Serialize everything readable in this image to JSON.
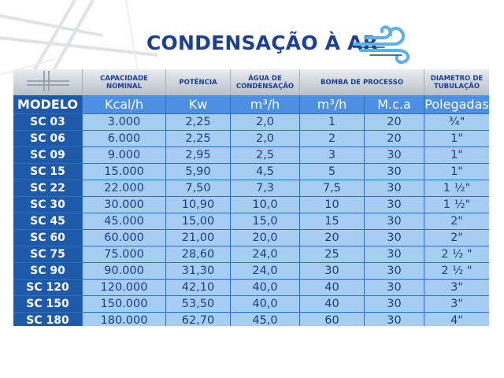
{
  "title": "CONDENSAÇÃO À AR",
  "icons": {
    "wind": "wind-icon",
    "background": "grid-lines",
    "corner": "grid-logo-icon"
  },
  "colors": {
    "title": "#1b3f92",
    "model_cell": "#1f5aa8",
    "unit_header": "#4d8fe0",
    "data_cell": "#a8cdf3",
    "data_text": "#1c3d84"
  },
  "table": {
    "group_headers": {
      "capacidade": "CAPACIDADE NOMINAL",
      "potencia": "POTÊNCIA",
      "agua": "ÁGUA DE CONDENSAÇÃO",
      "bomba": "BOMBA DE PROCESSO",
      "diametro": "DIAMETRO DE TUBULAÇÃO"
    },
    "unit_headers": [
      "MODELO",
      "Kcal/h",
      "Kw",
      "m³/h",
      "m³/h",
      "M.c.a",
      "Polegadas"
    ],
    "rows": [
      [
        "SC 03",
        "3.000",
        "2,25",
        "2,0",
        "1",
        "20",
        "¾\""
      ],
      [
        "SC 06",
        "6.000",
        "2,25",
        "2,0",
        "2",
        "20",
        "1\""
      ],
      [
        "SC 09",
        "9.000",
        "2,95",
        "2,5",
        "3",
        "30",
        "1\""
      ],
      [
        "SC 15",
        "15.000",
        "5,90",
        "4,5",
        "5",
        "30",
        "1\""
      ],
      [
        "SC 22",
        "22.000",
        "7,50",
        "7,3",
        "7,5",
        "30",
        "1 ½\""
      ],
      [
        "SC 30",
        "30.000",
        "10,90",
        "10,0",
        "10",
        "30",
        "1 ½\""
      ],
      [
        "SC 45",
        "45.000",
        "15,00",
        "15,0",
        "15",
        "30",
        "2\""
      ],
      [
        "SC 60",
        "60.000",
        "21,00",
        "20,0",
        "20",
        "30",
        "2\""
      ],
      [
        "SC 75",
        "75.000",
        "28,60",
        "24,0",
        "25",
        "30",
        "2 ½ \""
      ],
      [
        "SC 90",
        "90.000",
        "31,30",
        "24,0",
        "30",
        "30",
        "2 ½ \""
      ],
      [
        "SC 120",
        "120.000",
        "42,10",
        "40,0",
        "40",
        "30",
        "3\""
      ],
      [
        "SC 150",
        "150.000",
        "53,50",
        "40,0",
        "40",
        "30",
        "3\""
      ],
      [
        "SC 180",
        "180.000",
        "62,70",
        "45,0",
        "60",
        "30",
        "4\""
      ]
    ]
  }
}
